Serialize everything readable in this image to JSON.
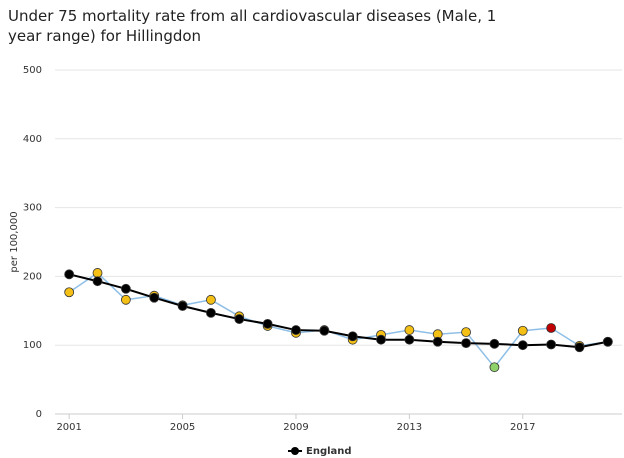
{
  "chart_data": {
    "type": "line",
    "title": "Under 75 mortality rate from all cardiovascular diseases (Male, 1 year range) for Hillingdon",
    "y_label": "per 100,000",
    "x": [
      2001,
      2002,
      2003,
      2004,
      2005,
      2006,
      2007,
      2008,
      2009,
      2010,
      2011,
      2012,
      2013,
      2014,
      2015,
      2016,
      2017,
      2018,
      2019,
      2020
    ],
    "series": [
      {
        "color": "#8fbfe6",
        "marker_colors": [
          "#f5c016",
          "#f5c016",
          "#f5c016",
          "#f5c016",
          "#f5c016",
          "#f5c016",
          "#f5c016",
          "#f5c016",
          "#f5c016",
          "#f5c016",
          "#f5c016",
          "#f5c016",
          "#f5c016",
          "#f5c016",
          "#f5c016",
          "#8fd16a",
          "#f5c016",
          "#c00000",
          "#f5c016",
          "#f5c016"
        ],
        "values": [
          177,
          205,
          166,
          172,
          158,
          166,
          142,
          128,
          118,
          122,
          108,
          115,
          122,
          116,
          119,
          68,
          121,
          125,
          99,
          105
        ]
      },
      {
        "name": "England",
        "color": "#000000",
        "values": [
          203,
          193,
          182,
          169,
          157,
          147,
          138,
          131,
          122,
          121,
          113,
          108,
          108,
          105,
          103,
          102,
          100,
          101,
          97,
          105
        ]
      }
    ],
    "xlim": [
      2000.5,
      2020.5
    ],
    "xticks": [
      2001,
      2005,
      2009,
      2013,
      2017
    ],
    "ylim": [
      0,
      500
    ],
    "yticks": [
      0,
      100,
      200,
      300,
      400,
      500
    ],
    "grid": true,
    "legend": "bottom"
  }
}
